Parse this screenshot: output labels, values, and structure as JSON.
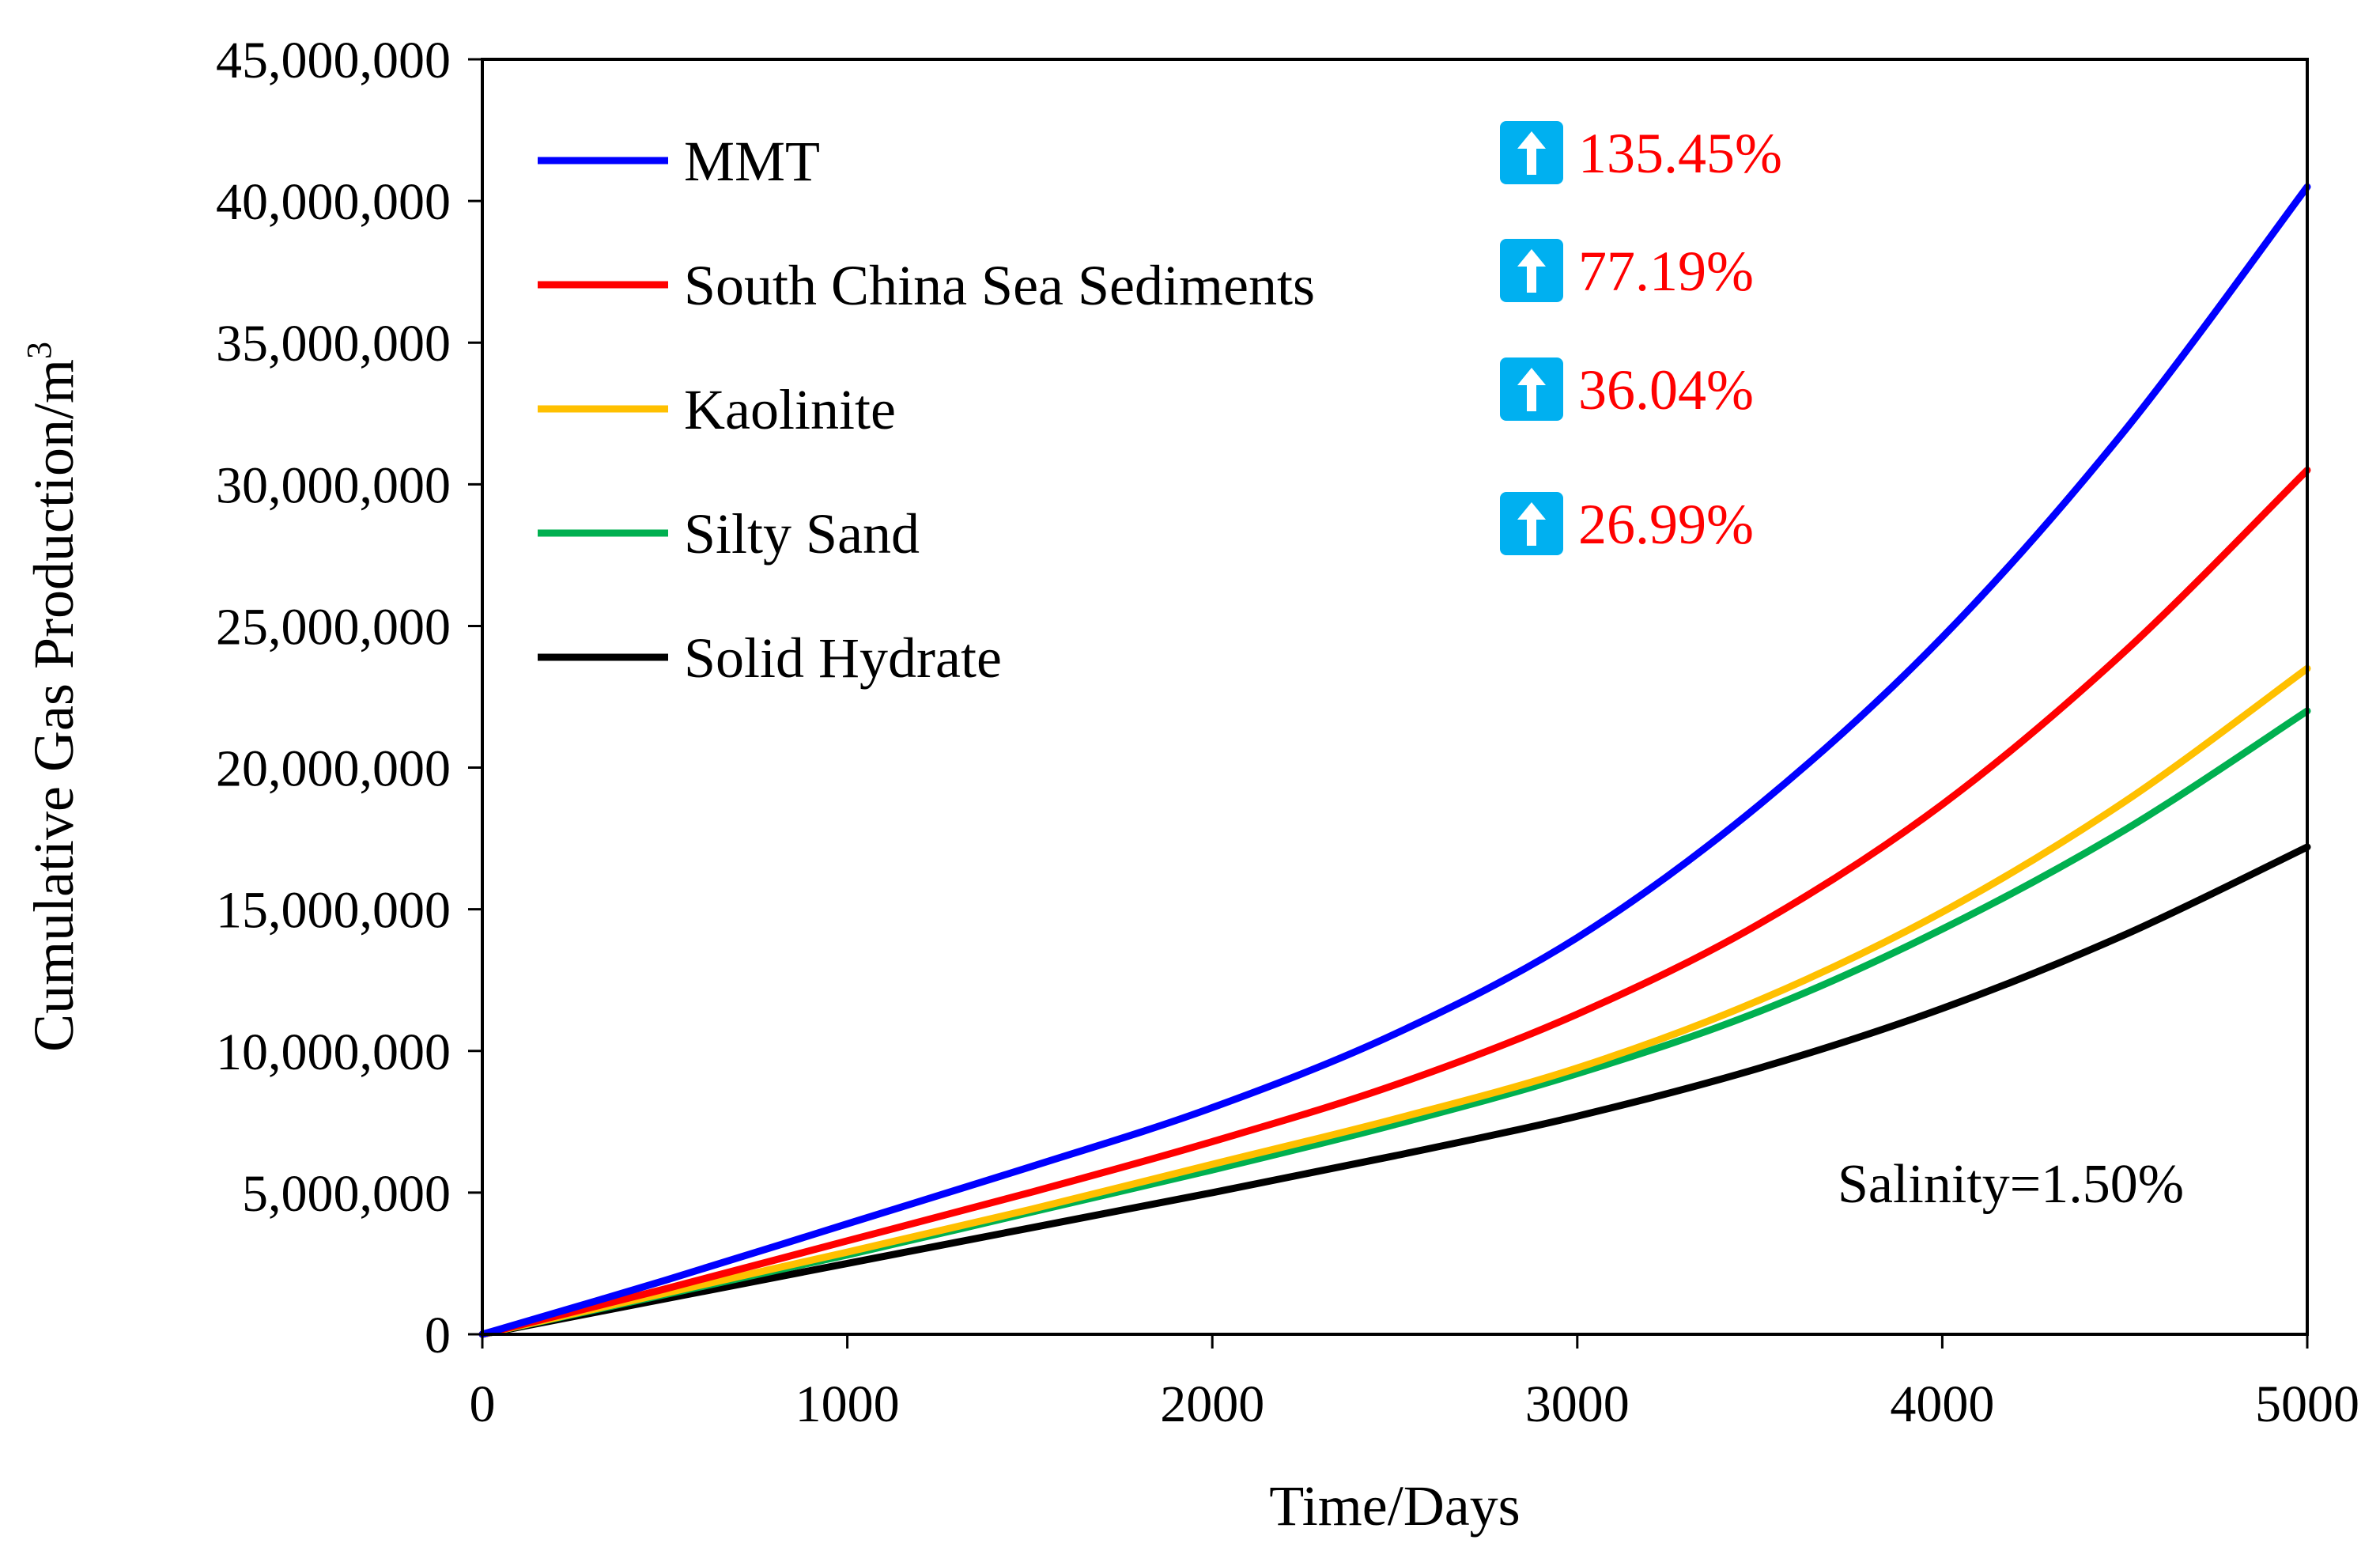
{
  "chart_data": {
    "type": "line",
    "xlabel": "Time/Days",
    "ylabel": "Cumulative Gas Production/m",
    "ylabel_superscript": "3",
    "xlim": [
      0,
      5000
    ],
    "ylim": [
      0,
      45000000
    ],
    "x_ticks": [
      0,
      1000,
      2000,
      3000,
      4000,
      5000
    ],
    "x_tick_labels": [
      "0",
      "1000",
      "2000",
      "3000",
      "4000",
      "5000"
    ],
    "y_ticks": [
      0,
      5000000,
      10000000,
      15000000,
      20000000,
      25000000,
      30000000,
      35000000,
      40000000,
      45000000
    ],
    "y_tick_labels": [
      "0",
      "5,000,000",
      "10,000,000",
      "15,000,000",
      "20,000,000",
      "25,000,000",
      "30,000,000",
      "35,000,000",
      "40,000,000",
      "45,000,000"
    ],
    "grid": false,
    "legend_position": "top-left",
    "x": [
      0,
      500,
      1000,
      1500,
      2000,
      2500,
      3000,
      3500,
      4000,
      4500,
      5000
    ],
    "series": [
      {
        "name": "MMT",
        "color": "#0000FF",
        "values": [
          0,
          1900000,
          3900000,
          5900000,
          8000000,
          10600000,
          14000000,
          18700000,
          24600000,
          31900000,
          40500000
        ]
      },
      {
        "name": "South China Sea Sediments",
        "color": "#FF0000",
        "values": [
          0,
          1600000,
          3300000,
          5000000,
          6800000,
          8800000,
          11300000,
          14500000,
          18700000,
          24100000,
          30500000
        ]
      },
      {
        "name": "Kaolinite",
        "color": "#FFC000",
        "values": [
          0,
          1450000,
          2900000,
          4400000,
          6000000,
          7600000,
          9400000,
          11800000,
          14900000,
          18800000,
          23500000
        ]
      },
      {
        "name": "Silty Sand",
        "color": "#00B050",
        "values": [
          0,
          1400000,
          2800000,
          4300000,
          5800000,
          7400000,
          9200000,
          11400000,
          14300000,
          17800000,
          22000000
        ]
      },
      {
        "name": "Solid Hydrate",
        "color": "#000000",
        "values": [
          0,
          1250000,
          2500000,
          3750000,
          5000000,
          6300000,
          7700000,
          9400000,
          11500000,
          14100000,
          17200000
        ]
      }
    ],
    "annotations": [
      {
        "text": "135.45%",
        "color": "#FF0000",
        "icon": "up-arrow-icon",
        "icon_color": "#00B0F0"
      },
      {
        "text": "77.19%",
        "color": "#FF0000",
        "icon": "up-arrow-icon",
        "icon_color": "#00B0F0"
      },
      {
        "text": "36.04%",
        "color": "#FF0000",
        "icon": "up-arrow-icon",
        "icon_color": "#00B0F0"
      },
      {
        "text": "26.99%",
        "color": "#FF0000",
        "icon": "up-arrow-icon",
        "icon_color": "#00B0F0"
      }
    ],
    "note": "Salinity=1.50%"
  }
}
